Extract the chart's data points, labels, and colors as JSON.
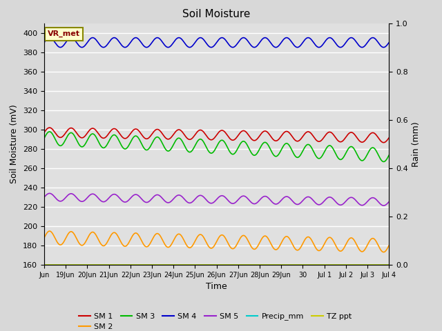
{
  "title": "Soil Moisture",
  "xlabel": "Time",
  "ylabel_left": "Soil Moisture (mV)",
  "ylabel_right": "Rain (mm)",
  "ylim_left": [
    160,
    410
  ],
  "ylim_right": [
    0.0,
    1.0
  ],
  "yticks_left": [
    160,
    180,
    200,
    220,
    240,
    260,
    280,
    300,
    320,
    340,
    360,
    380,
    400
  ],
  "yticks_right": [
    0.0,
    0.2,
    0.4,
    0.6,
    0.8,
    1.0
  ],
  "bg_color": "#d8d8d8",
  "plot_bg_color": "#e0e0e0",
  "annotation_text": "VR_met",
  "annotation_bg": "#ffffcc",
  "annotation_border": "#888800",
  "annotation_text_color": "#880000",
  "series": {
    "SM1": {
      "color": "#cc0000",
      "base": 297,
      "amplitude": 5,
      "trend": -0.35,
      "freq": 1.0
    },
    "SM2": {
      "color": "#ff9900",
      "base": 188,
      "amplitude": 7,
      "trend": -0.5,
      "freq": 1.0
    },
    "SM3": {
      "color": "#00bb00",
      "base": 291,
      "amplitude": 7,
      "trend": -1.1,
      "freq": 1.0
    },
    "SM4": {
      "color": "#0000cc",
      "base": 390,
      "amplitude": 5,
      "trend": 0.0,
      "freq": 1.0
    },
    "SM5": {
      "color": "#9922cc",
      "base": 230,
      "amplitude": 4,
      "trend": -0.3,
      "freq": 1.0
    },
    "Precip_mm": {
      "color": "#00cccc",
      "base": 160,
      "amplitude": 0,
      "trend": 0,
      "freq": 0
    },
    "TZ_ppt": {
      "color": "#cccc00",
      "base": 160,
      "amplitude": 0,
      "trend": 0,
      "freq": 0
    }
  },
  "legend_entries": [
    {
      "label": "SM 1",
      "color": "#cc0000"
    },
    {
      "label": "SM 2",
      "color": "#ff9900"
    },
    {
      "label": "SM 3",
      "color": "#00bb00"
    },
    {
      "label": "SM 4",
      "color": "#0000cc"
    },
    {
      "label": "SM 5",
      "color": "#9922cc"
    },
    {
      "label": "Precip_mm",
      "color": "#00cccc"
    },
    {
      "label": "TZ ppt",
      "color": "#cccc00"
    }
  ],
  "x_start_days": 0,
  "x_end_days": 16,
  "n_points": 2000,
  "xtick_labels": [
    "Jun",
    "19Jun",
    "20Jun",
    "21Jun",
    "22Jun",
    "23Jun",
    "24Jun",
    "25Jun",
    "26Jun",
    "27Jun",
    "28Jun",
    "29Jun",
    "30",
    "Jul 1",
    "Jul 2",
    "Jul 3",
    "Jul 4"
  ],
  "xtick_positions": [
    0,
    1,
    2,
    3,
    4,
    5,
    6,
    7,
    8,
    9,
    10,
    11,
    12,
    13,
    14,
    15,
    16
  ]
}
